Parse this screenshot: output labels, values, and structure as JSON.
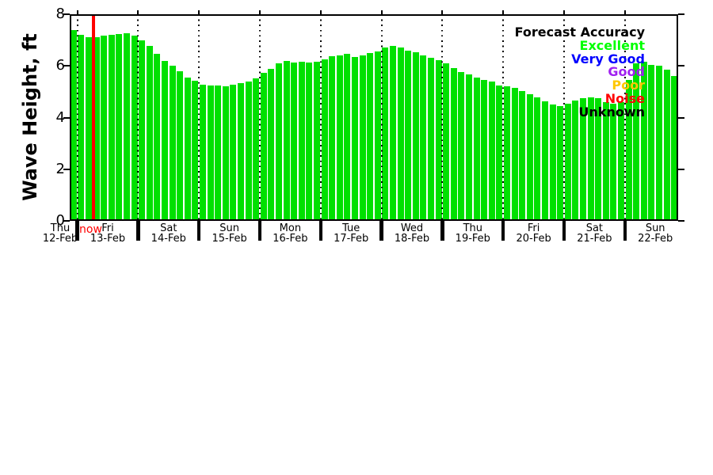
{
  "chart_data": {
    "type": "bar",
    "title": "",
    "xlabel": "",
    "ylabel": "Wave Height, ft",
    "ylim": [
      0,
      8
    ],
    "yticks": [
      0,
      2,
      4,
      6,
      8
    ],
    "grid": "vertical dotted lines at each midnight day boundary",
    "bar_series_meaning": "forecast significant wave height, all bars colored as Excellent accuracy",
    "days": [
      {
        "name": "Thu",
        "date": "12-Feb",
        "values_ft": [
          7.4
        ]
      },
      {
        "name": "Fri",
        "date": "13-Feb",
        "values_ft": [
          7.2,
          7.1,
          7.12,
          7.17,
          7.2,
          7.22,
          7.27,
          7.17
        ]
      },
      {
        "name": "Sat",
        "date": "14-Feb",
        "values_ft": [
          7.0,
          6.78,
          6.48,
          6.2,
          6.0,
          5.78,
          5.56,
          5.44
        ]
      },
      {
        "name": "Sun",
        "date": "15-Feb",
        "values_ft": [
          5.28,
          5.24,
          5.24,
          5.2,
          5.26,
          5.34,
          5.4,
          5.52
        ]
      },
      {
        "name": "Mon",
        "date": "16-Feb",
        "values_ft": [
          5.74,
          5.9,
          6.1,
          6.2,
          6.14,
          6.16,
          6.14,
          6.16
        ]
      },
      {
        "name": "Tue",
        "date": "17-Feb",
        "values_ft": [
          6.24,
          6.38,
          6.42,
          6.46,
          6.35,
          6.42,
          6.5,
          6.56
        ]
      },
      {
        "name": "Wed",
        "date": "18-Feb",
        "values_ft": [
          6.72,
          6.76,
          6.7,
          6.6,
          6.54,
          6.42,
          6.32,
          6.22
        ]
      },
      {
        "name": "Thu",
        "date": "19-Feb",
        "values_ft": [
          6.1,
          5.92,
          5.76,
          5.66,
          5.55,
          5.46,
          5.38,
          5.25
        ]
      },
      {
        "name": "Fri",
        "date": "20-Feb",
        "values_ft": [
          5.2,
          5.16,
          5.04,
          4.92,
          4.78,
          4.64,
          4.5,
          4.44
        ]
      },
      {
        "name": "Sat",
        "date": "21-Feb",
        "values_ft": [
          4.55,
          4.66,
          4.76,
          4.78,
          4.74,
          4.61,
          4.53,
          4.61
        ]
      },
      {
        "name": "Sun",
        "date": "22-Feb",
        "values_ft": [
          5.46,
          6.1,
          6.15,
          6.05,
          6.0,
          5.85,
          5.6
        ]
      }
    ],
    "now_marker": {
      "label": "now",
      "day_index": 1,
      "fraction_into_day": 0.26
    },
    "legend": {
      "title": "Forecast Accuracy",
      "position": "upper right inside plot",
      "entries": [
        {
          "label": "Excellent",
          "color": "#00FF00"
        },
        {
          "label": "Very Good",
          "color": "#0000FF"
        },
        {
          "label": "Good",
          "color": "#A020F0"
        },
        {
          "label": "Poor",
          "color": "#FFC800"
        },
        {
          "label": "Noise",
          "color": "#FF0000"
        },
        {
          "label": "Unknown",
          "color": "#000000"
        }
      ]
    }
  },
  "style": {
    "bar_color": "#00E000",
    "now_line_color": "#FF0000",
    "now_label_color": "#FF0000",
    "axis_color": "#000000",
    "background": "#FFFFFF"
  }
}
